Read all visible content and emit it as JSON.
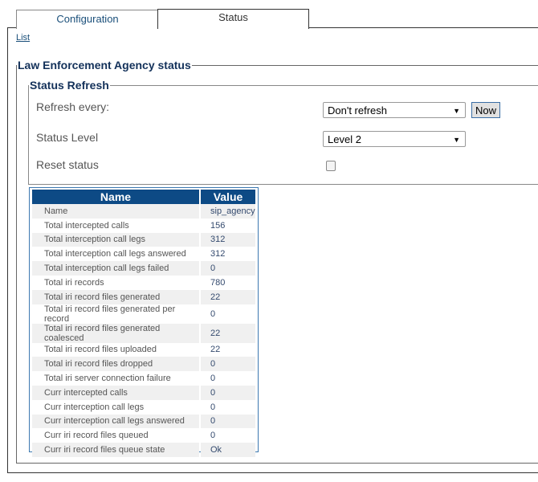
{
  "tabs": [
    {
      "label": "Configuration",
      "active": false
    },
    {
      "label": "Status",
      "active": true
    }
  ],
  "list_link": "List",
  "section_title": "Law Enforcement Agency status",
  "refresh": {
    "title": "Status Refresh",
    "refresh_label": "Refresh every:",
    "refresh_value": "Don't refresh",
    "now_button": "Now",
    "level_label": "Status Level",
    "level_value": "Level 2",
    "reset_label": "Reset status",
    "reset_checked": false
  },
  "table": {
    "headers": [
      "Name",
      "Value"
    ],
    "rows": [
      [
        "Name",
        "sip_agency"
      ],
      [
        "Total intercepted calls",
        "156"
      ],
      [
        "Total interception call legs",
        "312"
      ],
      [
        "Total interception call legs answered",
        "312"
      ],
      [
        "Total interception call legs failed",
        "0"
      ],
      [
        "Total iri records",
        "780"
      ],
      [
        "Total iri record files generated",
        "22"
      ],
      [
        "Total iri record files generated per record",
        "0"
      ],
      [
        "Total iri record files generated coalesced",
        "22"
      ],
      [
        "Total iri record files uploaded",
        "22"
      ],
      [
        "Total iri record files dropped",
        "0"
      ],
      [
        "Total iri server connection failure",
        "0"
      ],
      [
        "Curr intercepted calls",
        "0"
      ],
      [
        "Curr interception call legs",
        "0"
      ],
      [
        "Curr interception call legs answered",
        "0"
      ],
      [
        "Curr iri record files queued",
        "0"
      ],
      [
        "Curr iri record files queue state",
        "Ok"
      ]
    ]
  }
}
